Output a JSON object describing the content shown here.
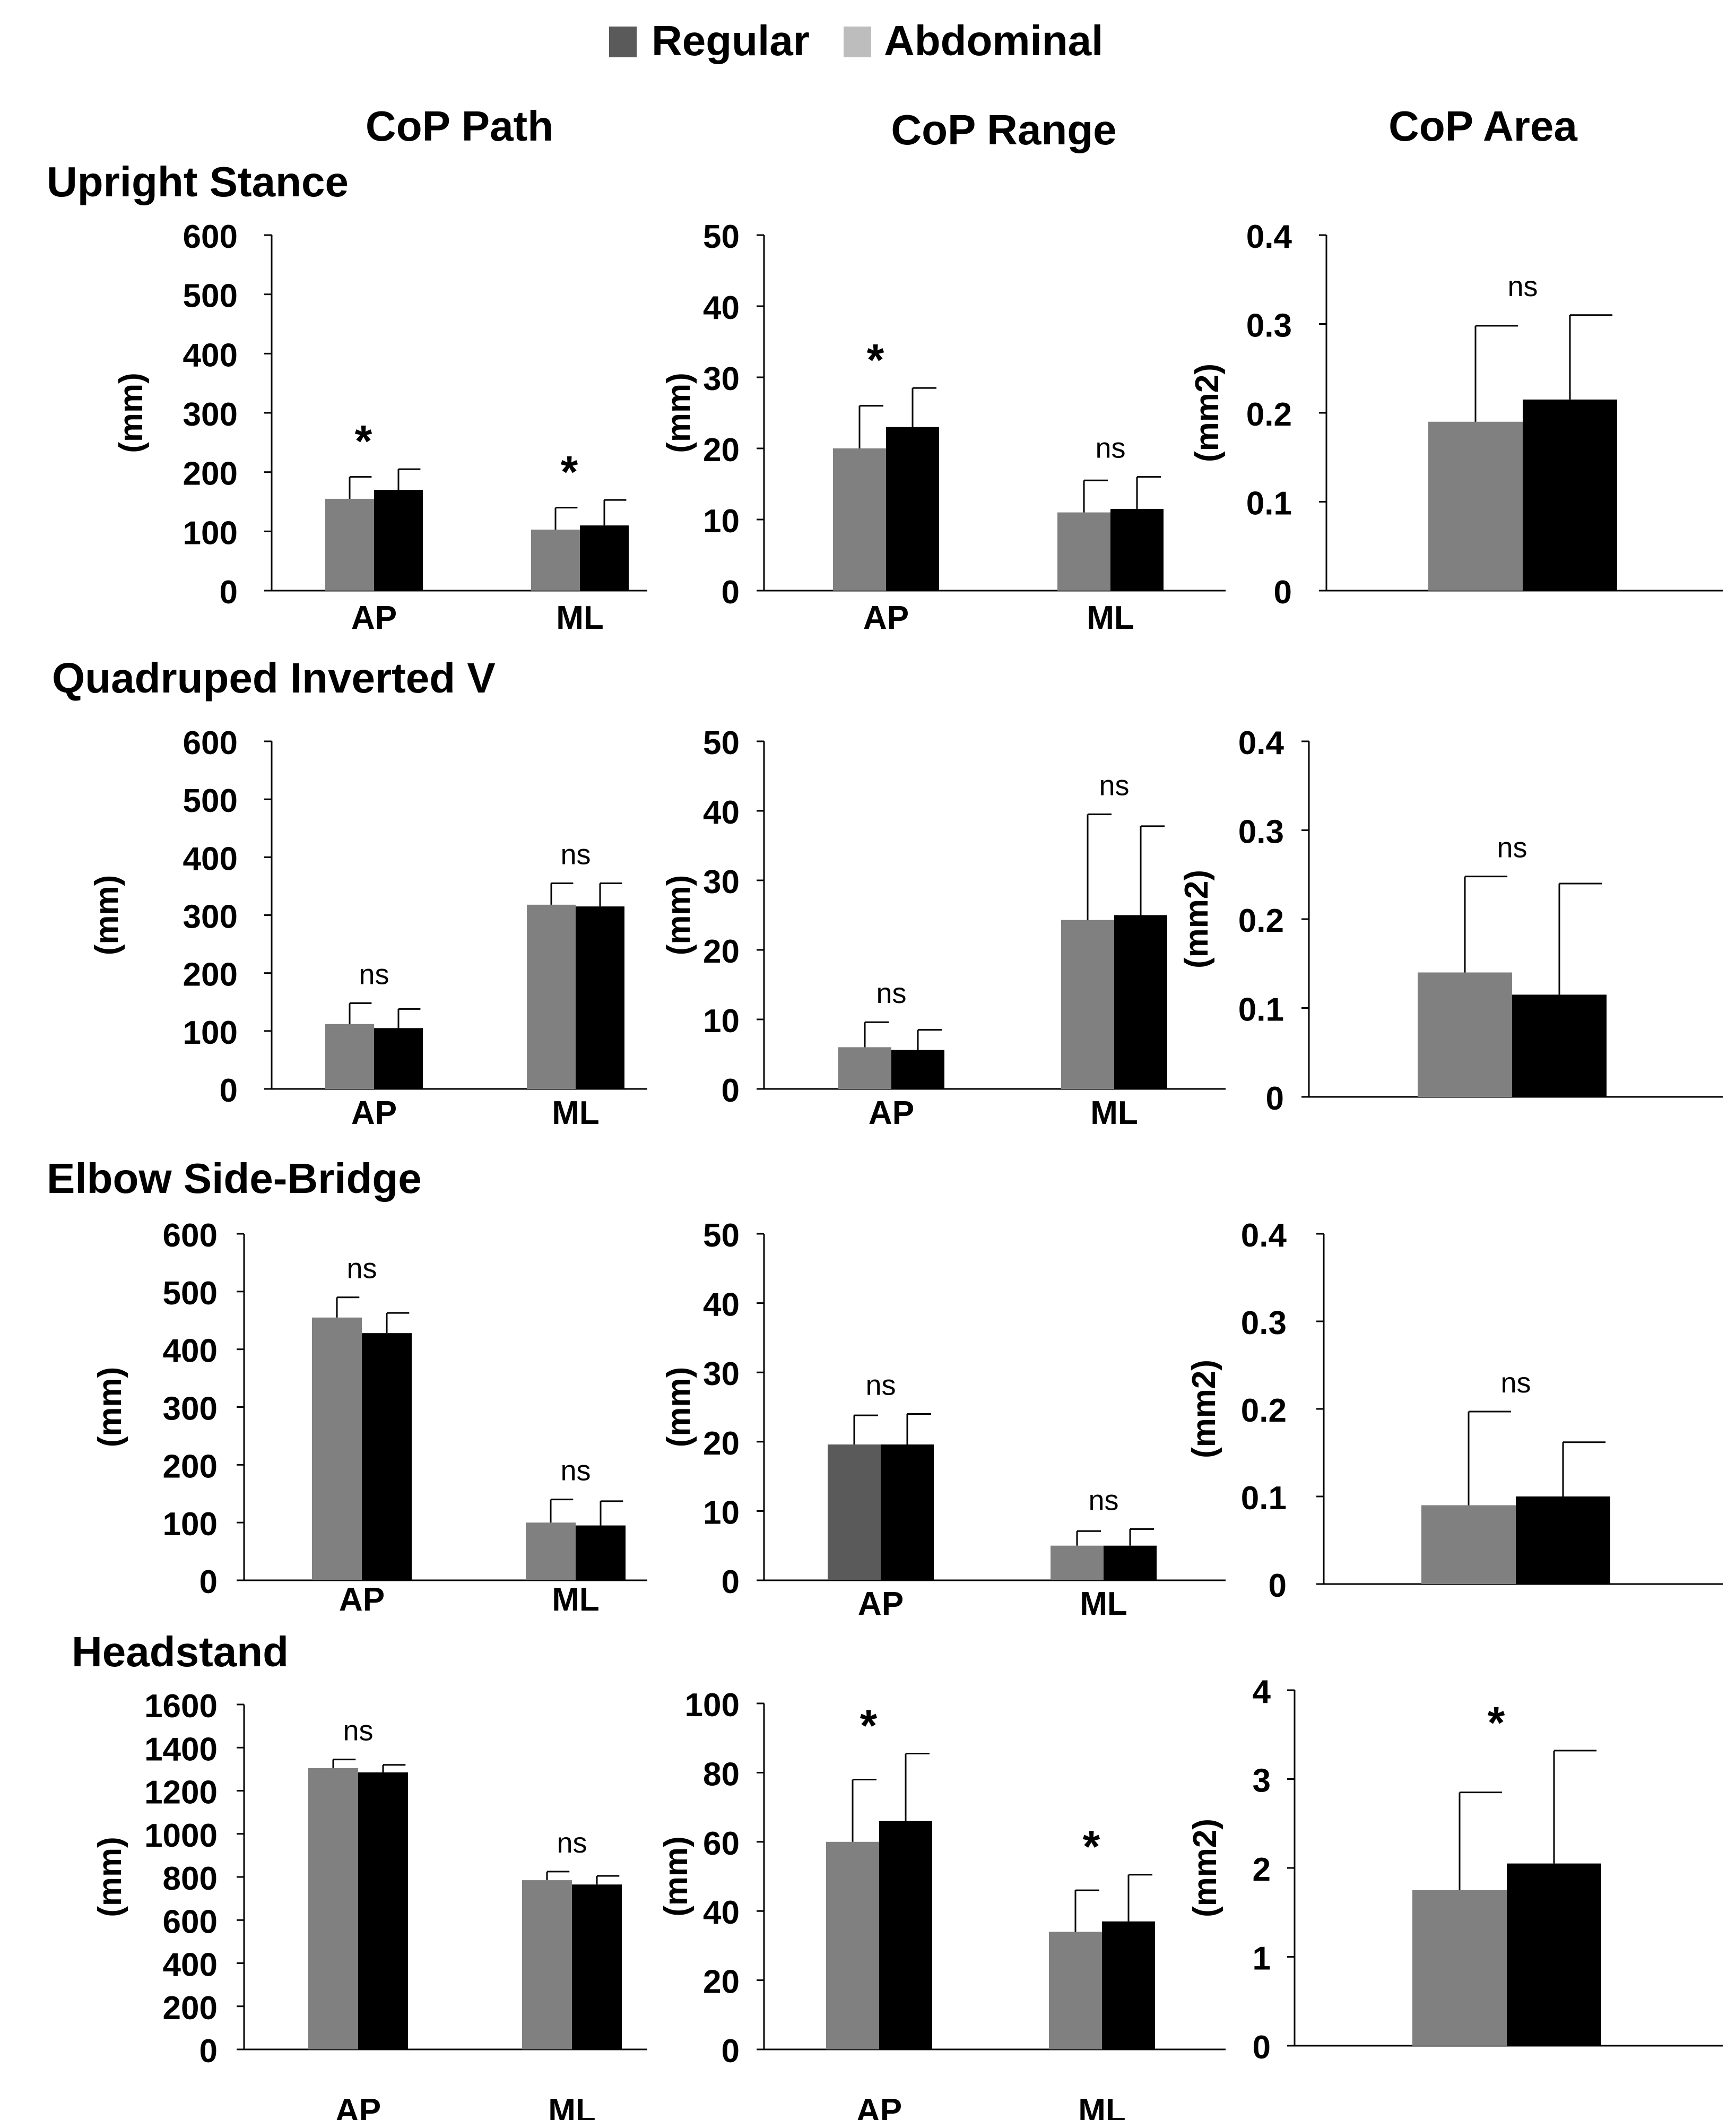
{
  "legend": {
    "items": [
      {
        "name": "Regular",
        "color": "#5a5a5a"
      },
      {
        "name": "Abdominal",
        "color": "#bdbdbd"
      }
    ]
  },
  "columns": [
    "CoP Path",
    "CoP Range",
    "CoP Area"
  ],
  "rows": [
    "Upright Stance",
    "Quadruped Inverted V",
    "Elbow Side-Bridge",
    "Headstand"
  ],
  "colors": {
    "bar1": "#808080",
    "bar1_dark": "#5a5a5a",
    "bar2": "#000000",
    "legend1": "#5a5a5a",
    "legend2": "#bdbdbd"
  },
  "chart_data": [
    {
      "type": "bar",
      "row": "Upright Stance",
      "column": "CoP Path",
      "ylabel": "(mm)",
      "ylim": [
        0,
        600
      ],
      "yticks": [
        0,
        100,
        200,
        300,
        400,
        500,
        600
      ],
      "categories": [
        "AP",
        "ML"
      ],
      "series": [
        {
          "name": "bar1",
          "values": [
            155,
            103
          ],
          "errors": [
            37,
            37
          ]
        },
        {
          "name": "bar2",
          "values": [
            170,
            110
          ],
          "errors": [
            35,
            43
          ]
        }
      ],
      "annotations": [
        "*",
        "*"
      ]
    },
    {
      "type": "bar",
      "row": "Upright Stance",
      "column": "CoP Range",
      "ylabel": "(mm)",
      "ylim": [
        0,
        50
      ],
      "yticks": [
        0,
        10,
        20,
        30,
        40,
        50
      ],
      "categories": [
        "AP",
        "ML"
      ],
      "series": [
        {
          "name": "bar1",
          "values": [
            20,
            11
          ],
          "errors": [
            6,
            4.5
          ]
        },
        {
          "name": "bar2",
          "values": [
            23,
            11.5
          ],
          "errors": [
            5.5,
            4.5
          ]
        }
      ],
      "annotations": [
        "*",
        "ns"
      ]
    },
    {
      "type": "bar",
      "row": "Upright Stance",
      "column": "CoP Area",
      "ylabel": "(mm2)",
      "ylim": [
        0,
        0.4
      ],
      "yticks": [
        0,
        0.1,
        0.2,
        0.3,
        0.4
      ],
      "categories": [
        ""
      ],
      "series": [
        {
          "name": "bar1",
          "values": [
            0.19
          ],
          "errors": [
            0.108
          ]
        },
        {
          "name": "bar2",
          "values": [
            0.215
          ],
          "errors": [
            0.095
          ]
        }
      ],
      "annotations": [
        "ns"
      ]
    },
    {
      "type": "bar",
      "row": "Quadruped Inverted V",
      "column": "CoP Path",
      "ylabel": "(mm)",
      "ylim": [
        0,
        600
      ],
      "yticks": [
        0,
        100,
        200,
        300,
        400,
        500,
        600
      ],
      "categories": [
        "AP",
        "ML"
      ],
      "series": [
        {
          "name": "bar1",
          "values": [
            112,
            318
          ],
          "errors": [
            36,
            37
          ]
        },
        {
          "name": "bar2",
          "values": [
            105,
            315
          ],
          "errors": [
            33,
            40
          ]
        }
      ],
      "annotations": [
        "ns",
        "ns"
      ]
    },
    {
      "type": "bar",
      "row": "Quadruped Inverted V",
      "column": "CoP Range",
      "ylabel": "(mm)",
      "ylim": [
        0,
        50
      ],
      "yticks": [
        0,
        10,
        20,
        30,
        40,
        50
      ],
      "categories": [
        "AP",
        "ML"
      ],
      "series": [
        {
          "name": "bar1",
          "values": [
            6,
            24.3
          ],
          "errors": [
            3.6,
            15.2
          ]
        },
        {
          "name": "bar2",
          "values": [
            5.6,
            25
          ],
          "errors": [
            2.9,
            12.8
          ]
        }
      ],
      "annotations": [
        "ns",
        "ns"
      ]
    },
    {
      "type": "bar",
      "row": "Quadruped Inverted V",
      "column": "CoP Area",
      "ylabel": "(mm2)",
      "ylim": [
        0,
        0.4
      ],
      "yticks": [
        0,
        0.1,
        0.2,
        0.3,
        0.4
      ],
      "categories": [
        ""
      ],
      "series": [
        {
          "name": "bar1",
          "values": [
            0.14
          ],
          "errors": [
            0.108
          ]
        },
        {
          "name": "bar2",
          "values": [
            0.115
          ],
          "errors": [
            0.125
          ]
        }
      ],
      "annotations": [
        "ns"
      ]
    },
    {
      "type": "bar",
      "row": "Elbow Side-Bridge",
      "column": "CoP Path",
      "ylabel": "(mm)",
      "ylim": [
        0,
        600
      ],
      "yticks": [
        0,
        100,
        200,
        300,
        400,
        500,
        600
      ],
      "categories": [
        "AP",
        "ML"
      ],
      "series": [
        {
          "name": "bar1",
          "values": [
            455,
            100
          ],
          "errors": [
            35,
            40
          ]
        },
        {
          "name": "bar2",
          "values": [
            428,
            95
          ],
          "errors": [
            35,
            42
          ]
        }
      ],
      "annotations": [
        "ns",
        "ns"
      ]
    },
    {
      "type": "bar",
      "row": "Elbow Side-Bridge",
      "column": "CoP Range",
      "ylabel": "(mm)",
      "ylim": [
        0,
        50
      ],
      "yticks": [
        0,
        10,
        20,
        30,
        40,
        50
      ],
      "categories": [
        "AP",
        "ML"
      ],
      "series": [
        {
          "name": "bar1",
          "values": [
            19.6,
            5
          ],
          "errors": [
            4.2,
            2.1
          ]
        },
        {
          "name": "bar2",
          "values": [
            19.6,
            5
          ],
          "errors": [
            4.4,
            2.4
          ]
        }
      ],
      "annotations": [
        "ns",
        "ns"
      ]
    },
    {
      "type": "bar",
      "row": "Elbow Side-Bridge",
      "column": "CoP Area",
      "ylabel": "(mm2)",
      "ylim": [
        0,
        0.4
      ],
      "yticks": [
        0,
        0.1,
        0.2,
        0.3,
        0.4
      ],
      "categories": [
        ""
      ],
      "series": [
        {
          "name": "bar1",
          "values": [
            0.09
          ],
          "errors": [
            0.107
          ]
        },
        {
          "name": "bar2",
          "values": [
            0.1
          ],
          "errors": [
            0.062
          ]
        }
      ],
      "annotations": [
        "ns"
      ]
    },
    {
      "type": "bar",
      "row": "Headstand",
      "column": "CoP Path",
      "ylabel": "(mm)",
      "ylim": [
        0,
        1600
      ],
      "yticks": [
        0,
        200,
        400,
        600,
        800,
        1000,
        1200,
        1400,
        1600
      ],
      "categories": [
        "AP",
        "ML"
      ],
      "series": [
        {
          "name": "bar1",
          "values": [
            1305,
            785
          ],
          "errors": [
            40,
            40
          ]
        },
        {
          "name": "bar2",
          "values": [
            1285,
            765
          ],
          "errors": [
            35,
            40
          ]
        }
      ],
      "annotations": [
        "ns",
        "ns"
      ]
    },
    {
      "type": "bar",
      "row": "Headstand",
      "column": "CoP Range",
      "ylabel": "(mm)",
      "ylim": [
        0,
        100
      ],
      "yticks": [
        0,
        20,
        40,
        60,
        80,
        100
      ],
      "categories": [
        "AP",
        "ML"
      ],
      "series": [
        {
          "name": "bar1",
          "values": [
            60,
            34
          ],
          "errors": [
            18,
            12
          ]
        },
        {
          "name": "bar2",
          "values": [
            66,
            37
          ],
          "errors": [
            19.5,
            13.5
          ]
        }
      ],
      "annotations": [
        "*",
        "*"
      ]
    },
    {
      "type": "bar",
      "row": "Headstand",
      "column": "CoP Area",
      "ylabel": "(mm2)",
      "ylim": [
        0,
        4
      ],
      "yticks": [
        0,
        1,
        2,
        3,
        4
      ],
      "categories": [
        ""
      ],
      "series": [
        {
          "name": "bar1",
          "values": [
            1.75
          ],
          "errors": [
            1.1
          ]
        },
        {
          "name": "bar2",
          "values": [
            2.05
          ],
          "errors": [
            1.27
          ]
        }
      ],
      "annotations": [
        "*"
      ]
    }
  ]
}
